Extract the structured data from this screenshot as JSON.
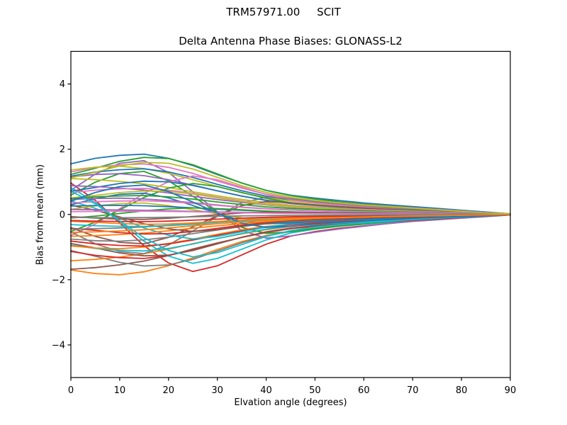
{
  "chart_data": {
    "type": "line",
    "suptitle": "TRM57971.00     SCIT",
    "title": "Delta Antenna Phase Biases: GLONASS-L2",
    "xlabel": "Elvation angle (degrees)",
    "ylabel": "Bias from mean (mm)",
    "xlim": [
      0,
      90
    ],
    "ylim": [
      -5,
      5
    ],
    "xticks": [
      0,
      10,
      20,
      30,
      40,
      50,
      60,
      70,
      80,
      90
    ],
    "yticks": [
      -4,
      -2,
      0,
      2,
      4
    ],
    "grid": false,
    "legend_position": "none",
    "background": "#ffffff",
    "axis_color": "#000000",
    "x": [
      0,
      5,
      10,
      15,
      20,
      25,
      30,
      35,
      40,
      45,
      50,
      55,
      60,
      65,
      70,
      75,
      80,
      85,
      90
    ],
    "shapes": {
      "S1": [
        0.84,
        0.93,
        0.98,
        1.0,
        0.93,
        0.81,
        0.66,
        0.52,
        0.4,
        0.32,
        0.27,
        0.23,
        0.19,
        0.16,
        0.13,
        0.1,
        0.07,
        0.04,
        0.01
      ],
      "S2": [
        0.92,
        0.98,
        1.0,
        0.95,
        0.85,
        0.72,
        0.58,
        0.45,
        0.35,
        0.28,
        0.23,
        0.19,
        0.16,
        0.13,
        0.1,
        0.08,
        0.05,
        0.03,
        0.0
      ],
      "S3": [
        0.7,
        0.81,
        0.93,
        1.0,
        0.98,
        0.87,
        0.71,
        0.55,
        0.42,
        0.33,
        0.27,
        0.22,
        0.18,
        0.15,
        0.12,
        0.09,
        0.06,
        0.03,
        0.01
      ],
      "S4": [
        -0.55,
        -0.25,
        0.15,
        0.55,
        0.85,
        1.0,
        0.9,
        0.71,
        0.52,
        0.38,
        0.3,
        0.24,
        0.2,
        0.16,
        0.12,
        0.09,
        0.06,
        0.03,
        0.0
      ],
      "S5": [
        0.45,
        0.75,
        0.95,
        1.0,
        0.78,
        0.42,
        0.05,
        -0.3,
        -0.44,
        -0.4,
        -0.33,
        -0.27,
        -0.22,
        -0.17,
        -0.13,
        -0.1,
        -0.07,
        -0.04,
        -0.01
      ],
      "S6": [
        1.0,
        0.97,
        0.92,
        0.85,
        0.75,
        0.63,
        0.52,
        0.42,
        0.33,
        0.26,
        0.21,
        0.17,
        0.14,
        0.11,
        0.09,
        0.07,
        0.05,
        0.02,
        0.0
      ]
    },
    "series": [
      {
        "color": "#1f77b4",
        "amplitude_mm": 1.85,
        "shape": "S1"
      },
      {
        "color": "#ff7f0e",
        "amplitude_mm": -1.85,
        "shape": "S2"
      },
      {
        "color": "#2ca02c",
        "amplitude_mm": 1.75,
        "shape": "S3"
      },
      {
        "color": "#d62728",
        "amplitude_mm": -1.75,
        "shape": "S4"
      },
      {
        "color": "#9467bd",
        "amplitude_mm": 1.65,
        "shape": "S5"
      },
      {
        "color": "#8c564b",
        "amplitude_mm": -1.68,
        "shape": "S6"
      },
      {
        "color": "#e377c2",
        "amplitude_mm": 1.55,
        "shape": "S1"
      },
      {
        "color": "#7f7f7f",
        "amplitude_mm": -1.58,
        "shape": "S3"
      },
      {
        "color": "#bcbd22",
        "amplitude_mm": 1.48,
        "shape": "S2"
      },
      {
        "color": "#17becf",
        "amplitude_mm": -1.5,
        "shape": "S4"
      },
      {
        "color": "#1f77b4",
        "amplitude_mm": 1.4,
        "shape": "S1"
      },
      {
        "color": "#ff7f0e",
        "amplitude_mm": -1.42,
        "shape": "S6"
      },
      {
        "color": "#2ca02c",
        "amplitude_mm": 1.32,
        "shape": "S5"
      },
      {
        "color": "#d62728",
        "amplitude_mm": -1.35,
        "shape": "S1"
      },
      {
        "color": "#9467bd",
        "amplitude_mm": 1.25,
        "shape": "S2"
      },
      {
        "color": "#8c564b",
        "amplitude_mm": -1.27,
        "shape": "S3"
      },
      {
        "color": "#e377c2",
        "amplitude_mm": 1.18,
        "shape": "S4"
      },
      {
        "color": "#7f7f7f",
        "amplitude_mm": -1.2,
        "shape": "S5"
      },
      {
        "color": "#bcbd22",
        "amplitude_mm": 1.1,
        "shape": "S6"
      },
      {
        "color": "#17becf",
        "amplitude_mm": -1.12,
        "shape": "S1"
      },
      {
        "color": "#1f77b4",
        "amplitude_mm": 1.02,
        "shape": "S3"
      },
      {
        "color": "#ff7f0e",
        "amplitude_mm": -1.05,
        "shape": "S2"
      },
      {
        "color": "#2ca02c",
        "amplitude_mm": 0.95,
        "shape": "S4"
      },
      {
        "color": "#d62728",
        "amplitude_mm": -0.97,
        "shape": "S1"
      },
      {
        "color": "#9467bd",
        "amplitude_mm": 0.88,
        "shape": "S6"
      },
      {
        "color": "#8c564b",
        "amplitude_mm": -0.9,
        "shape": "S5"
      },
      {
        "color": "#e377c2",
        "amplitude_mm": 0.8,
        "shape": "S1"
      },
      {
        "color": "#7f7f7f",
        "amplitude_mm": -0.82,
        "shape": "S2"
      },
      {
        "color": "#bcbd22",
        "amplitude_mm": 0.72,
        "shape": "S3"
      },
      {
        "color": "#17becf",
        "amplitude_mm": -0.75,
        "shape": "S4"
      },
      {
        "color": "#1f77b4",
        "amplitude_mm": 0.65,
        "shape": "S5"
      },
      {
        "color": "#ff7f0e",
        "amplitude_mm": -0.67,
        "shape": "S6"
      },
      {
        "color": "#2ca02c",
        "amplitude_mm": 0.58,
        "shape": "S1"
      },
      {
        "color": "#d62728",
        "amplitude_mm": -0.6,
        "shape": "S3"
      },
      {
        "color": "#9467bd",
        "amplitude_mm": 0.5,
        "shape": "S2"
      },
      {
        "color": "#8c564b",
        "amplitude_mm": -0.52,
        "shape": "S4"
      },
      {
        "color": "#e377c2",
        "amplitude_mm": 0.42,
        "shape": "S1"
      },
      {
        "color": "#7f7f7f",
        "amplitude_mm": -0.45,
        "shape": "S6"
      },
      {
        "color": "#bcbd22",
        "amplitude_mm": 0.35,
        "shape": "S5"
      },
      {
        "color": "#17becf",
        "amplitude_mm": -0.37,
        "shape": "S1"
      },
      {
        "color": "#1f77b4",
        "amplitude_mm": 0.28,
        "shape": "S2"
      },
      {
        "color": "#ff7f0e",
        "amplitude_mm": -0.3,
        "shape": "S3"
      },
      {
        "color": "#2ca02c",
        "amplitude_mm": 0.2,
        "shape": "S4"
      },
      {
        "color": "#d62728",
        "amplitude_mm": -0.22,
        "shape": "S1"
      },
      {
        "color": "#9467bd",
        "amplitude_mm": 0.15,
        "shape": "S6"
      },
      {
        "color": "#8c564b",
        "amplitude_mm": -0.15,
        "shape": "S5"
      },
      {
        "color": "#e377c2",
        "amplitude_mm": 0.1,
        "shape": "S1"
      },
      {
        "color": "#7f7f7f",
        "amplitude_mm": -0.1,
        "shape": "S2"
      },
      {
        "color": "#bcbd22",
        "amplitude_mm": 1.6,
        "shape": "S3"
      },
      {
        "color": "#17becf",
        "amplitude_mm": -1.3,
        "shape": "S4"
      },
      {
        "color": "#1f77b4",
        "amplitude_mm": 0.9,
        "shape": "S5"
      },
      {
        "color": "#ff7f0e",
        "amplitude_mm": -0.55,
        "shape": "S6"
      }
    ]
  }
}
